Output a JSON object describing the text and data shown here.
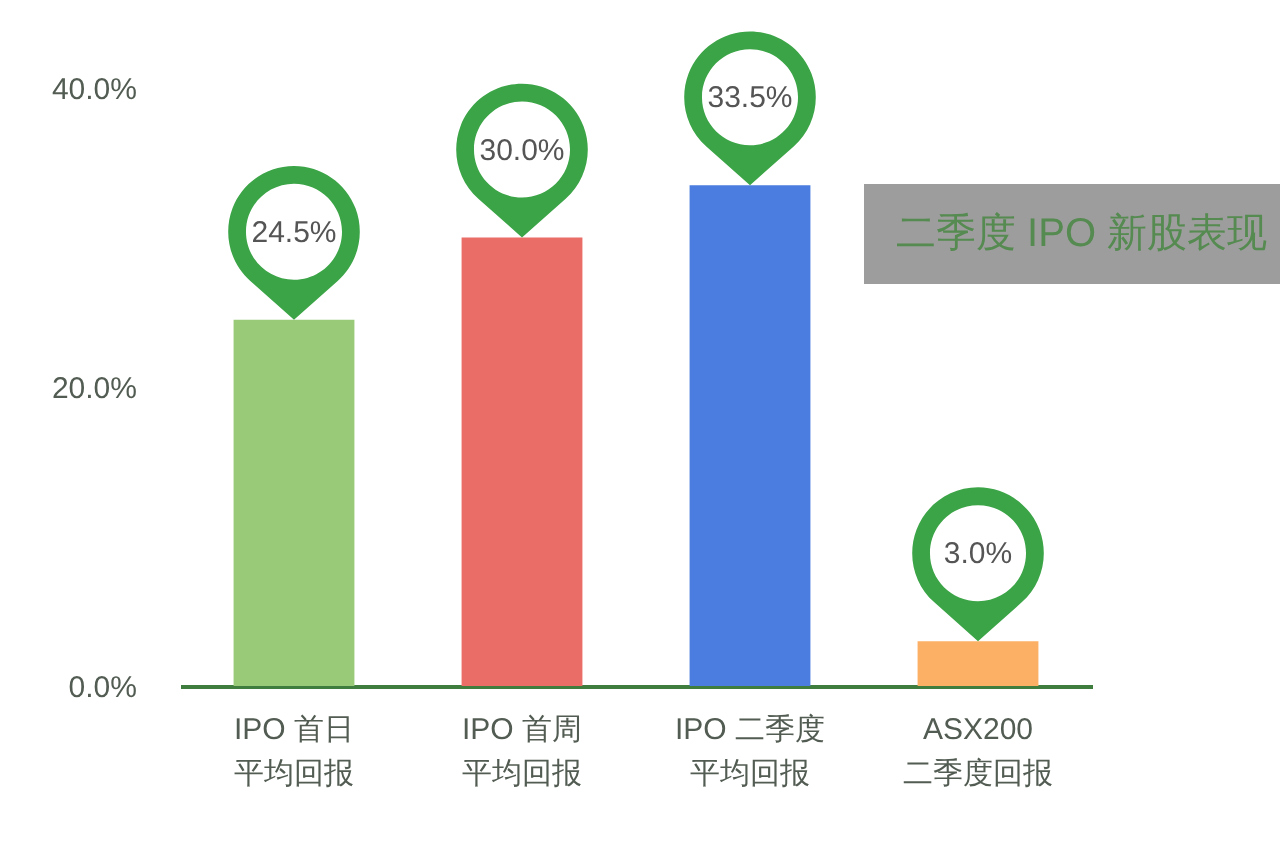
{
  "chart_data": {
    "type": "bar",
    "title": "二季度 IPO 新股表现",
    "categories": [
      "IPO 首日平均回报",
      "IPO 首周平均回报",
      "IPO 二季度平均回报",
      "ASX200二季度回报"
    ],
    "values": [
      24.5,
      30.0,
      33.5,
      3.0
    ],
    "colors": [
      "#98ca78",
      "#ea6d67",
      "#4a7ddf",
      "#fbb065"
    ],
    "value_labels": [
      "24.5%",
      "30.0%",
      "33.5%",
      "3.0%"
    ],
    "ylim": [
      0,
      40
    ],
    "yticks": [
      {
        "value": 0,
        "label": "0.0%"
      },
      {
        "value": 20,
        "label": "20.0%"
      },
      {
        "value": 40,
        "label": "40.0%"
      }
    ]
  }
}
